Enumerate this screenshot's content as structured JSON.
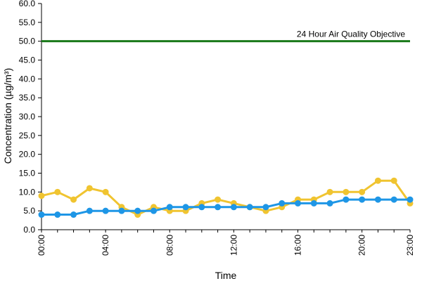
{
  "chart_data": {
    "type": "line",
    "title": "",
    "xlabel": "Time",
    "ylabel": "Concentration (µg/m³)",
    "ylim": [
      0,
      60
    ],
    "yticks": [
      "0.0",
      "5.0",
      "10.0",
      "15.0",
      "20.0",
      "25.0",
      "30.0",
      "35.0",
      "40.0",
      "45.0",
      "50.0",
      "55.0",
      "60.0"
    ],
    "x": [
      0,
      1,
      2,
      3,
      4,
      5,
      6,
      7,
      8,
      9,
      10,
      11,
      12,
      13,
      14,
      15,
      16,
      17,
      18,
      19,
      20,
      21,
      22,
      23
    ],
    "xticks": [
      {
        "hour": 0,
        "label": "00:00"
      },
      {
        "hour": 4,
        "label": "04:00"
      },
      {
        "hour": 8,
        "label": "08:00"
      },
      {
        "hour": 12,
        "label": "12:00"
      },
      {
        "hour": 16,
        "label": "16:00"
      },
      {
        "hour": 20,
        "label": "20:00"
      },
      {
        "hour": 23,
        "label": "23:00"
      }
    ],
    "series": [
      {
        "color": "#F0C430",
        "values": [
          9,
          10,
          8,
          11,
          10,
          6,
          4,
          6,
          5,
          5,
          7,
          8,
          7,
          6,
          5,
          6,
          8,
          8,
          10,
          10,
          10,
          13,
          13,
          7
        ]
      },
      {
        "color": "#1E96E6",
        "values": [
          4,
          4,
          4,
          5,
          5,
          5,
          5,
          5,
          6,
          6,
          6,
          6,
          6,
          6,
          6,
          7,
          7,
          7,
          7,
          8,
          8,
          8,
          8,
          8
        ]
      }
    ],
    "objective": {
      "value": 50,
      "label": "24 Hour Air Quality Objective",
      "color": "#1A7A1A"
    },
    "grid": false,
    "legend": "none"
  }
}
